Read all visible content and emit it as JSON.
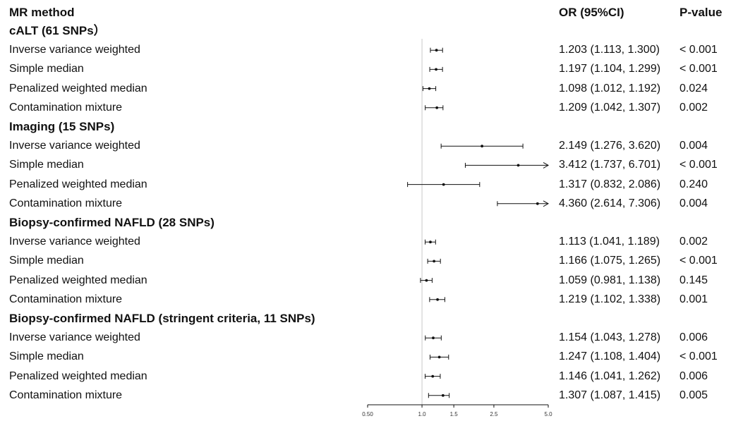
{
  "header": {
    "method": "MR method",
    "or": "OR (95%CI)",
    "pvalue": "P-value"
  },
  "chart_data": {
    "type": "forest",
    "xscale": "log",
    "xlim": [
      0.5,
      5.0
    ],
    "reference_line": 1.0,
    "x_ticks": [
      0.5,
      1.0,
      1.5,
      2.5,
      5.0
    ],
    "x_tick_labels": [
      "0.50",
      "1.0",
      "1.5",
      "2.5",
      "5.0"
    ],
    "groups": [
      {
        "title": "cALT (61 SNPs）",
        "rows": [
          {
            "method": "Inverse variance weighted",
            "or": 1.203,
            "lower": 1.113,
            "upper": 1.3,
            "or_text": "1.203 (1.113, 1.300)",
            "p": "< 0.001"
          },
          {
            "method": "Simple median",
            "or": 1.197,
            "lower": 1.104,
            "upper": 1.299,
            "or_text": "1.197 (1.104, 1.299)",
            "p": "< 0.001"
          },
          {
            "method": "Penalized weighted median",
            "or": 1.098,
            "lower": 1.012,
            "upper": 1.192,
            "or_text": "1.098 (1.012, 1.192)",
            "p": "0.024"
          },
          {
            "method": "Contamination mixture",
            "or": 1.209,
            "lower": 1.042,
            "upper": 1.307,
            "or_text": "1.209 (1.042, 1.307)",
            "p": "0.002"
          }
        ]
      },
      {
        "title": "Imaging (15 SNPs)",
        "rows": [
          {
            "method": "Inverse variance weighted",
            "or": 2.149,
            "lower": 1.276,
            "upper": 3.62,
            "or_text": "2.149 (1.276, 3.620)",
            "p": "0.004"
          },
          {
            "method": "Simple median",
            "or": 3.412,
            "lower": 1.737,
            "upper": 6.701,
            "or_text": "3.412 (1.737, 6.701)",
            "p": "< 0.001"
          },
          {
            "method": "Penalized weighted median",
            "or": 1.317,
            "lower": 0.832,
            "upper": 2.086,
            "or_text": "1.317 (0.832, 2.086)",
            "p": "0.240"
          },
          {
            "method": "Contamination mixture",
            "or": 4.36,
            "lower": 2.614,
            "upper": 7.306,
            "or_text": "4.360 (2.614, 7.306)",
            "p": "0.004"
          }
        ]
      },
      {
        "title": "Biopsy-confirmed NAFLD (28 SNPs)",
        "rows": [
          {
            "method": "Inverse variance weighted",
            "or": 1.113,
            "lower": 1.041,
            "upper": 1.189,
            "or_text": "1.113 (1.041, 1.189)",
            "p": "0.002"
          },
          {
            "method": "Simple median",
            "or": 1.166,
            "lower": 1.075,
            "upper": 1.265,
            "or_text": "1.166 (1.075, 1.265)",
            "p": "< 0.001"
          },
          {
            "method": "Penalized weighted median",
            "or": 1.059,
            "lower": 0.981,
            "upper": 1.138,
            "or_text": "1.059 (0.981, 1.138)",
            "p": "0.145"
          },
          {
            "method": "Contamination mixture",
            "or": 1.219,
            "lower": 1.102,
            "upper": 1.338,
            "or_text": "1.219 (1.102, 1.338)",
            "p": "0.001"
          }
        ]
      },
      {
        "title": "Biopsy-confirmed NAFLD (stringent criteria, 11 SNPs)",
        "rows": [
          {
            "method": "Inverse variance weighted",
            "or": 1.154,
            "lower": 1.043,
            "upper": 1.278,
            "or_text": "1.154 (1.043, 1.278)",
            "p": "0.006"
          },
          {
            "method": "Simple median",
            "or": 1.247,
            "lower": 1.108,
            "upper": 1.404,
            "or_text": "1.247 (1.108, 1.404)",
            "p": "< 0.001"
          },
          {
            "method": "Penalized weighted median",
            "or": 1.146,
            "lower": 1.041,
            "upper": 1.262,
            "or_text": "1.146 (1.041, 1.262)",
            "p": "0.006"
          },
          {
            "method": "Contamination mixture",
            "or": 1.307,
            "lower": 1.087,
            "upper": 1.415,
            "or_text": "1.307 (1.087, 1.415)",
            "p": "0.005"
          }
        ]
      }
    ]
  }
}
